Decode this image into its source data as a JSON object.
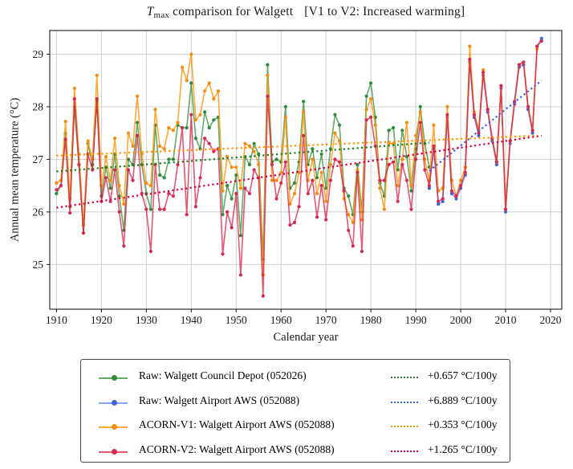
{
  "figure": {
    "title_t": "T",
    "title_sub": "max",
    "title_main": " comparison for Walgett",
    "title_bracket": "[V1 to V2: Increased warming]"
  },
  "axes": {
    "xlabel": "Calendar year",
    "ylabel": "Annual mean temperature (°C)",
    "xlim": [
      1908.5,
      2022.5
    ],
    "ylim": [
      24.15,
      29.45
    ],
    "xticks": [
      1910,
      1920,
      1930,
      1940,
      1950,
      1960,
      1970,
      1980,
      1990,
      2000,
      2010,
      2020
    ],
    "yticks": [
      25,
      26,
      27,
      28,
      29
    ],
    "grid": true,
    "grid_color": "#cccccc"
  },
  "chart_data": {
    "type": "line",
    "title": "Tmax comparison for Walgett [V1 to V2: Increased warming]",
    "xlabel": "Calendar year",
    "ylabel": "Annual mean temperature (°C)",
    "legend_position": "below",
    "series": [
      {
        "name": "Raw: Walgett Council Depot (052026)",
        "start_year": 1910,
        "end_year": 1993,
        "color": {
          "line": "rgba(58,146,62,0.78)",
          "marker": "#2e8b3a",
          "trend": "#1e7d22"
        },
        "trend": {
          "label": "+0.657 °C/100y",
          "start_year": 1910,
          "end_year": 1993,
          "start_value": 26.77,
          "end_value": 27.32
        },
        "values": [
          26.35,
          26.5,
          27.5,
          26.1,
          28.0,
          26.9,
          25.6,
          27.3,
          26.9,
          28.1,
          26.3,
          26.85,
          26.45,
          27.1,
          26.3,
          25.65,
          27.0,
          26.9,
          27.7,
          26.9,
          26.35,
          26.05,
          27.65,
          26.7,
          26.65,
          27.0,
          27.0,
          27.65,
          27.6,
          27.6,
          28.45,
          27.4,
          27.2,
          27.9,
          27.6,
          27.75,
          27.8,
          25.95,
          26.5,
          26.25,
          26.7,
          25.55,
          27.05,
          26.9,
          27.3,
          27.1,
          25.1,
          28.8,
          26.95,
          27.0,
          26.95,
          28.0,
          26.45,
          26.55,
          26.95,
          28.1,
          26.9,
          27.2,
          26.65,
          27.1,
          26.45,
          27.2,
          27.85,
          27.65,
          26.45,
          26.3,
          25.95,
          26.9,
          26.0,
          28.2,
          28.45,
          27.8,
          26.55,
          26.3,
          27.55,
          27.6,
          26.8,
          27.55,
          27.05,
          26.4,
          27.2,
          28.0,
          27.3,
          26.85
        ]
      },
      {
        "name": "Raw: Walgett Airport AWS (052088)",
        "start_year": 1993,
        "end_year": 2018,
        "color": {
          "line": "rgba(65,105,225,0.62)",
          "marker": "#3f63d2",
          "trend": "#3a5fdd"
        },
        "trend": {
          "label": "+6.889 °C/100y",
          "start_year": 1993,
          "end_year": 2018,
          "start_value": 26.78,
          "end_value": 28.5
        },
        "values": [
          26.45,
          27.2,
          26.15,
          26.2,
          27.8,
          26.35,
          26.25,
          26.45,
          26.7,
          28.85,
          27.8,
          27.45,
          28.6,
          27.9,
          27.35,
          26.9,
          28.35,
          26.0,
          27.3,
          28.05,
          28.75,
          28.8,
          27.95,
          27.5,
          29.15,
          29.3
        ]
      },
      {
        "name": "ACORN-V1: Walgett Airport AWS (052088)",
        "start_year": 1910,
        "end_year": 2017,
        "color": {
          "line": "rgba(255,153,20,0.85)",
          "marker": "#f28b0e",
          "trend": "#ff9300"
        },
        "trend": {
          "label": "+0.353 °C/100y",
          "start_year": 1910,
          "end_year": 2017,
          "start_value": 27.07,
          "end_value": 27.45
        },
        "values": [
          26.55,
          26.6,
          27.72,
          26.25,
          28.35,
          27.1,
          25.75,
          27.35,
          27.0,
          28.6,
          26.5,
          27.05,
          26.6,
          27.4,
          26.5,
          26.15,
          27.5,
          27.25,
          28.2,
          27.1,
          26.55,
          26.5,
          27.95,
          27.25,
          27.2,
          27.6,
          27.55,
          27.7,
          28.75,
          28.5,
          29.0,
          27.75,
          27.85,
          28.3,
          28.45,
          28.15,
          28.3,
          26.4,
          27.05,
          26.85,
          26.85,
          26.45,
          27.3,
          27.25,
          27.15,
          26.9,
          24.8,
          28.6,
          26.6,
          26.6,
          26.75,
          27.8,
          26.15,
          26.35,
          26.75,
          27.9,
          26.6,
          27.0,
          26.35,
          26.75,
          26.2,
          26.9,
          27.5,
          27.35,
          26.25,
          25.95,
          25.8,
          26.8,
          25.85,
          27.95,
          28.15,
          27.65,
          26.45,
          26.05,
          27.3,
          27.3,
          26.5,
          27.0,
          27.7,
          26.5,
          27.45,
          27.9,
          27.0,
          26.6,
          27.65,
          26.4,
          26.45,
          28.0,
          26.6,
          26.3,
          26.6,
          26.85,
          29.15,
          27.9,
          27.55,
          28.7,
          27.95,
          27.4,
          26.95,
          28.4,
          26.05,
          27.35,
          28.1,
          28.8,
          28.85,
          28.0,
          27.55,
          29.1
        ]
      },
      {
        "name": "ACORN-V2: Walgett Airport AWS (052088)",
        "start_year": 1910,
        "end_year": 2018,
        "color": {
          "line": "rgba(220,20,60,0.72)",
          "marker": "#d42a50",
          "trend": "#d60040"
        },
        "trend": {
          "label": "+1.265 °C/100y",
          "start_year": 1910,
          "end_year": 2018,
          "start_value": 26.08,
          "end_value": 27.45
        },
        "values": [
          26.42,
          26.5,
          27.38,
          25.98,
          28.15,
          26.9,
          25.6,
          27.1,
          26.8,
          28.15,
          26.2,
          26.65,
          26.2,
          26.8,
          26.0,
          25.35,
          26.8,
          26.6,
          27.45,
          26.35,
          26.05,
          25.25,
          26.9,
          26.05,
          26.05,
          26.35,
          26.3,
          26.9,
          27.6,
          25.95,
          27.85,
          26.1,
          26.65,
          27.4,
          27.3,
          27.15,
          27.2,
          25.2,
          26.0,
          25.7,
          26.35,
          24.8,
          26.45,
          26.35,
          26.8,
          26.65,
          24.4,
          28.2,
          26.9,
          26.25,
          26.55,
          26.95,
          25.75,
          25.8,
          26.1,
          27.45,
          26.35,
          26.6,
          25.9,
          26.5,
          25.85,
          26.6,
          27.0,
          26.95,
          26.4,
          25.65,
          25.35,
          26.75,
          25.25,
          27.75,
          27.8,
          27.25,
          26.6,
          26.6,
          26.9,
          26.95,
          26.2,
          26.9,
          26.6,
          26.05,
          27.0,
          27.7,
          26.8,
          26.5,
          27.25,
          26.2,
          26.25,
          27.85,
          26.4,
          26.3,
          26.5,
          26.75,
          28.9,
          27.85,
          27.5,
          28.65,
          27.95,
          27.4,
          26.95,
          28.4,
          26.05,
          27.35,
          28.1,
          28.8,
          28.85,
          28.0,
          27.55,
          29.15,
          29.25
        ]
      }
    ]
  },
  "legend": {
    "rows": [
      {
        "label": "Raw: Walgett Council Depot (052026)",
        "trend_label": "+0.657 °C/100y"
      },
      {
        "label": "Raw: Walgett Airport AWS (052088)",
        "trend_label": "+6.889 °C/100y"
      },
      {
        "label": "ACORN-V1: Walgett Airport AWS (052088)",
        "trend_label": "+0.353 °C/100y"
      },
      {
        "label": "ACORN-V2: Walgett Airport AWS (052088)",
        "trend_label": "+1.265 °C/100y"
      }
    ]
  }
}
